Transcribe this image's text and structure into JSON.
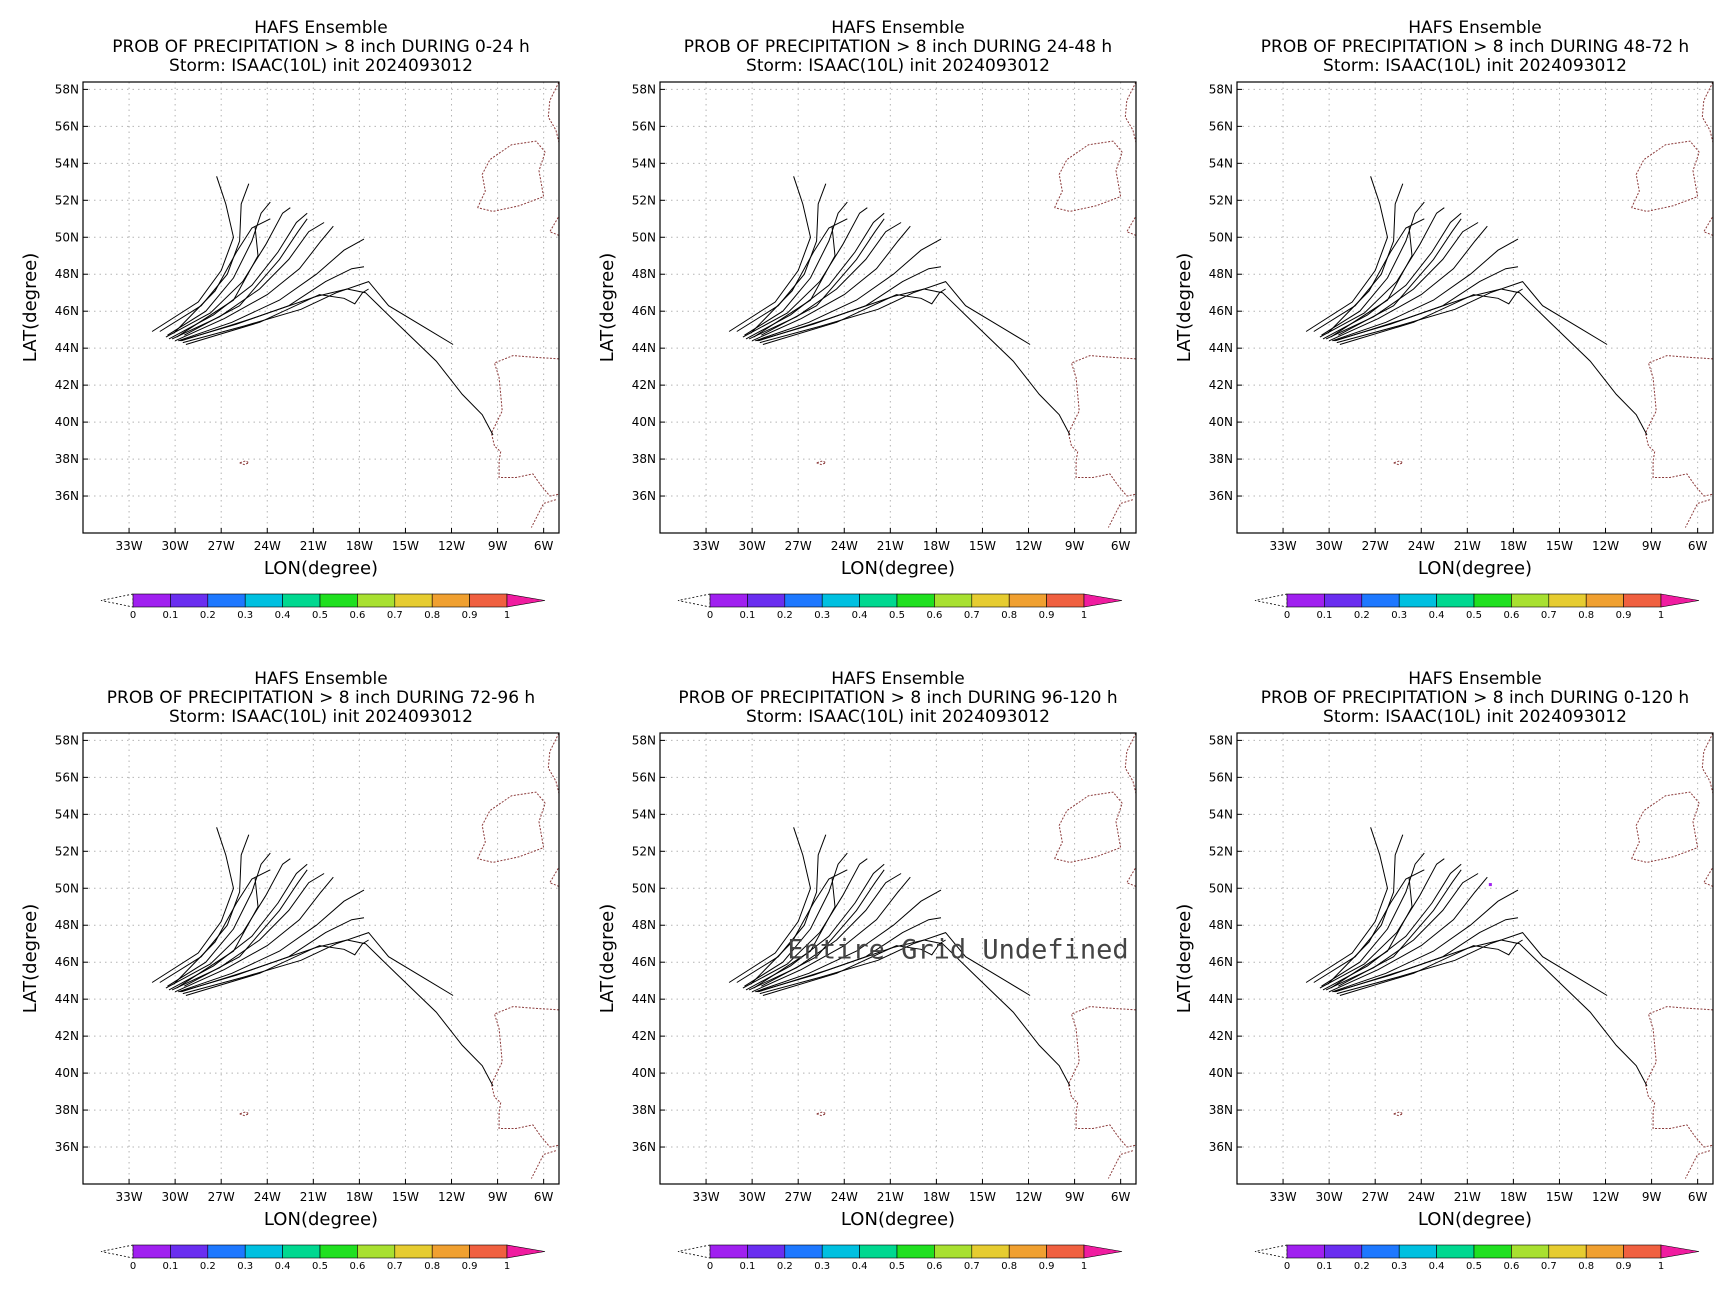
{
  "panels": [
    {
      "title1": "HAFS Ensemble",
      "title2": "PROB OF PRECIPITATION > 8 inch DURING  0-24 h",
      "title3": "Storm: ISAAC(10L) init 2024093012",
      "message": "",
      "dot": false
    },
    {
      "title1": "HAFS Ensemble",
      "title2": "PROB OF PRECIPITATION > 8 inch DURING 24-48 h",
      "title3": "Storm: ISAAC(10L) init 2024093012",
      "message": "",
      "dot": false
    },
    {
      "title1": "HAFS Ensemble",
      "title2": "PROB OF PRECIPITATION > 8 inch DURING 48-72 h",
      "title3": "Storm: ISAAC(10L) init 2024093012",
      "message": "",
      "dot": false
    },
    {
      "title1": "HAFS Ensemble",
      "title2": "PROB OF PRECIPITATION > 8 inch DURING 72-96 h",
      "title3": "Storm: ISAAC(10L) init 2024093012",
      "message": "",
      "dot": false
    },
    {
      "title1": "HAFS Ensemble",
      "title2": "PROB OF PRECIPITATION > 8 inch DURING 96-120 h",
      "title3": "Storm: ISAAC(10L) init 2024093012",
      "message": "Entire Grid Undefined",
      "dot": false
    },
    {
      "title1": "HAFS Ensemble",
      "title2": "PROB OF PRECIPITATION > 8 inch DURING 0-120 h",
      "title3": "Storm: ISAAC(10L) init 2024093012",
      "message": "",
      "dot": true
    }
  ],
  "axes": {
    "xlabel": "LON(degree)",
    "ylabel": "LAT(degree)",
    "lon_range": [
      -36,
      -5
    ],
    "lat_range": [
      34,
      58.4
    ],
    "lon_ticks": [
      -33,
      -30,
      -27,
      -24,
      -21,
      -18,
      -15,
      -12,
      -9,
      -6
    ],
    "lon_tick_labels": [
      "33W",
      "30W",
      "27W",
      "24W",
      "21W",
      "18W",
      "15W",
      "12W",
      "9W",
      "6W"
    ],
    "lat_ticks": [
      36,
      38,
      40,
      42,
      44,
      46,
      48,
      50,
      52,
      54,
      56,
      58
    ],
    "lat_tick_labels": [
      "36N",
      "38N",
      "40N",
      "42N",
      "44N",
      "46N",
      "48N",
      "50N",
      "52N",
      "54N",
      "56N",
      "58N"
    ]
  },
  "colorbar": {
    "labels": [
      "0",
      "0.1",
      "0.2",
      "0.3",
      "0.4",
      "0.5",
      "0.6",
      "0.7",
      "0.8",
      "0.9",
      "1"
    ],
    "colors": [
      "#a020f0",
      "#6a2ef0",
      "#1e78ff",
      "#00c0e0",
      "#00d890",
      "#20e020",
      "#a8e030",
      "#e6cc30",
      "#f0a030",
      "#f06040"
    ],
    "high_color": "#f01ca0",
    "low_color": "#ffffff"
  },
  "colors": {
    "coast": "#8b3a3a",
    "track": "#000000",
    "grid": "#b4b4b4",
    "dot": "#a020f0"
  },
  "dot_location": {
    "lon": -19.5,
    "lat": 50.2
  },
  "tracks": [
    [
      [
        -31.5,
        44.9
      ],
      [
        -28.5,
        46.5
      ],
      [
        -27.0,
        48.2
      ],
      [
        -26.2,
        50.0
      ],
      [
        -26.7,
        51.8
      ],
      [
        -27.3,
        53.3
      ]
    ],
    [
      [
        -31.0,
        44.9
      ],
      [
        -28.3,
        46.3
      ],
      [
        -26.6,
        48.0
      ],
      [
        -25.8,
        49.8
      ],
      [
        -25.7,
        51.8
      ],
      [
        -25.2,
        52.9
      ]
    ],
    [
      [
        -30.5,
        44.7
      ],
      [
        -28.0,
        46.0
      ],
      [
        -26.2,
        47.8
      ],
      [
        -25.0,
        49.8
      ],
      [
        -24.4,
        51.3
      ],
      [
        -23.8,
        51.9
      ]
    ],
    [
      [
        -30.6,
        44.6
      ],
      [
        -27.7,
        45.9
      ],
      [
        -25.6,
        47.6
      ],
      [
        -24.1,
        49.6
      ],
      [
        -23.0,
        51.3
      ],
      [
        -22.5,
        51.6
      ]
    ],
    [
      [
        -30.4,
        44.5
      ],
      [
        -27.5,
        45.8
      ],
      [
        -25.0,
        47.4
      ],
      [
        -23.3,
        49.2
      ],
      [
        -22.1,
        50.8
      ],
      [
        -21.4,
        51.3
      ]
    ],
    [
      [
        -30.2,
        44.5
      ],
      [
        -27.1,
        45.7
      ],
      [
        -24.5,
        47.2
      ],
      [
        -22.6,
        48.8
      ],
      [
        -21.3,
        50.3
      ],
      [
        -20.3,
        50.8
      ]
    ],
    [
      [
        -30.0,
        44.4
      ],
      [
        -26.8,
        45.6
      ],
      [
        -24.0,
        46.9
      ],
      [
        -21.9,
        48.3
      ],
      [
        -20.5,
        49.8
      ],
      [
        -19.7,
        50.6
      ]
    ],
    [
      [
        -29.8,
        44.4
      ],
      [
        -26.3,
        45.4
      ],
      [
        -23.2,
        46.6
      ],
      [
        -20.8,
        48.0
      ],
      [
        -19.0,
        49.3
      ],
      [
        -17.7,
        49.9
      ]
    ],
    [
      [
        -29.7,
        44.4
      ],
      [
        -26.0,
        45.3
      ],
      [
        -22.6,
        46.3
      ],
      [
        -20.2,
        47.6
      ],
      [
        -18.5,
        48.3
      ],
      [
        -17.7,
        48.4
      ]
    ],
    [
      [
        -29.5,
        44.3
      ],
      [
        -25.5,
        45.2
      ],
      [
        -21.8,
        46.1
      ],
      [
        -19.5,
        47.0
      ],
      [
        -17.4,
        47.6
      ],
      [
        -16.1,
        46.3
      ],
      [
        -13.5,
        45.0
      ],
      [
        -11.9,
        44.2
      ]
    ],
    [
      [
        -29.6,
        44.4
      ],
      [
        -25.0,
        45.6
      ],
      [
        -20.8,
        46.8
      ],
      [
        -18.8,
        47.2
      ],
      [
        -17.6,
        47.0
      ],
      [
        -15.5,
        45.3
      ],
      [
        -13.0,
        43.3
      ],
      [
        -11.3,
        41.5
      ],
      [
        -10.0,
        40.4
      ],
      [
        -9.3,
        39.3
      ]
    ],
    [
      [
        -29.3,
        44.2
      ],
      [
        -24.5,
        45.4
      ],
      [
        -20.6,
        46.9
      ],
      [
        -19.0,
        46.7
      ],
      [
        -18.3,
        46.4
      ],
      [
        -17.8,
        47.0
      ],
      [
        -17.4,
        47.2
      ]
    ],
    [
      [
        -29.9,
        44.6
      ],
      [
        -26.2,
        46.6
      ],
      [
        -24.6,
        49.0
      ],
      [
        -24.8,
        50.6
      ]
    ],
    [
      [
        -30.1,
        44.8
      ],
      [
        -27.4,
        47.1
      ],
      [
        -26.0,
        49.2
      ],
      [
        -25.0,
        50.5
      ],
      [
        -23.8,
        51.0
      ]
    ],
    [
      [
        -29.4,
        44.7
      ],
      [
        -25.8,
        46.3
      ],
      [
        -23.2,
        48.8
      ],
      [
        -22.0,
        50.3
      ],
      [
        -21.4,
        51.0
      ]
    ]
  ]
}
